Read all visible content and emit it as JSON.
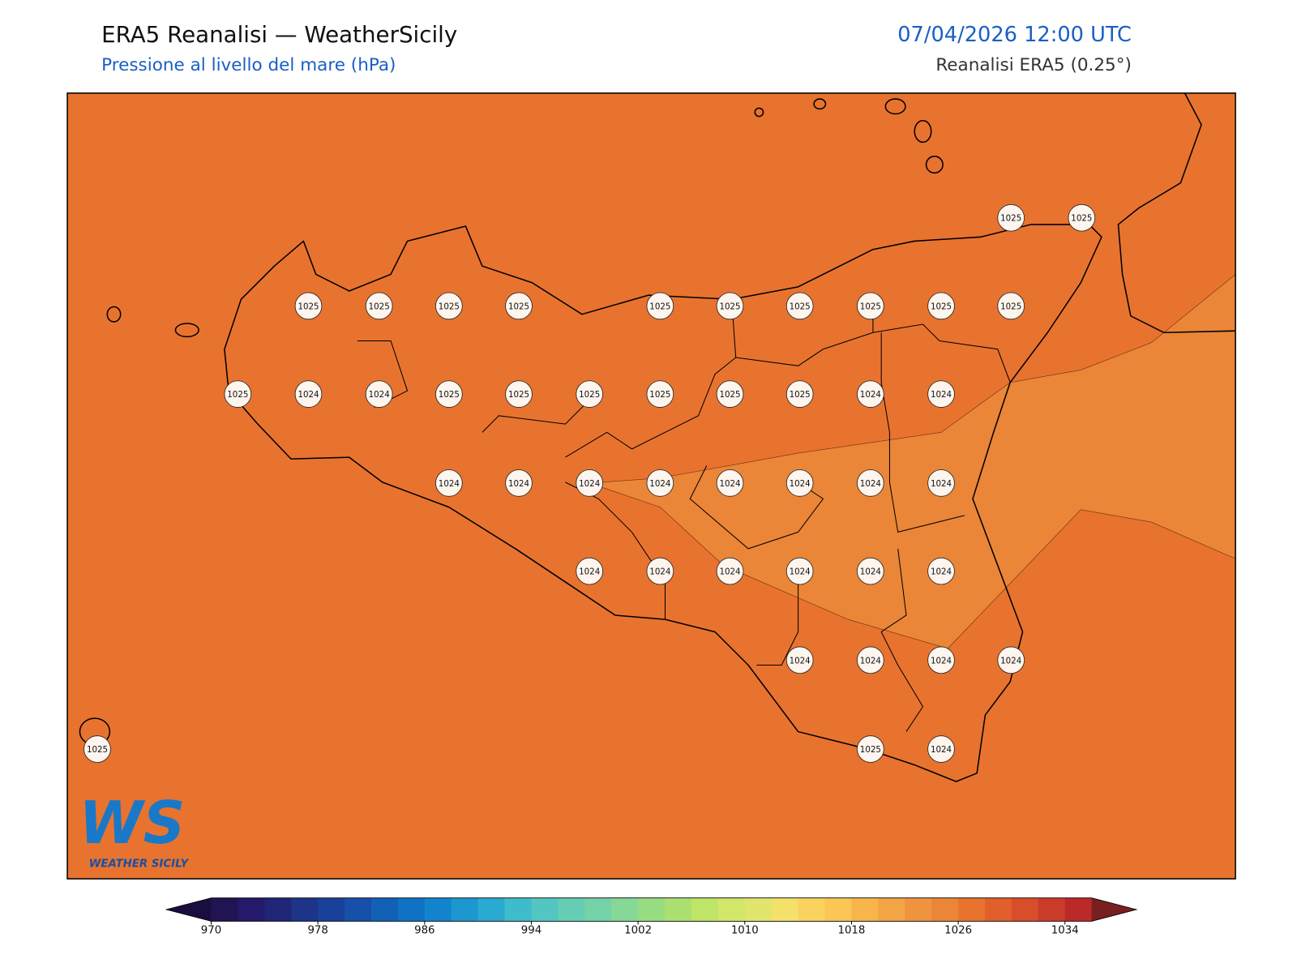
{
  "header": {
    "title": "ERA5 Reanalisi — WeatherSicily",
    "subtitle": "Pressione al livello del mare (hPa)",
    "datetime": "07/04/2026 12:00 UTC",
    "source": "Reanalisi ERA5 (0.25°)"
  },
  "map": {
    "pressure_labels": [
      1025,
      1025,
      1025,
      1025,
      1025,
      1025,
      1025,
      1025,
      1025,
      1025,
      1025,
      1025,
      1025,
      1024,
      1024,
      1025,
      1025,
      1025,
      1025,
      1025,
      1025,
      1024,
      1024,
      1024,
      1024,
      1024,
      1024,
      1024,
      1024,
      1024,
      1024,
      1024,
      1024,
      1024,
      1024,
      1024,
      1024,
      1024,
      1024,
      1024,
      1024,
      1025,
      1025,
      1024
    ]
  },
  "logo": {
    "text": "WS",
    "name": "WEATHER SICILY"
  },
  "colorbar": {
    "range": [
      970,
      1036
    ],
    "ticks": [
      970,
      978,
      986,
      994,
      1002,
      1010,
      1018,
      1026,
      1034
    ],
    "colors": [
      "#221452",
      "#24196a",
      "#1f2676",
      "#1d3488",
      "#1a419a",
      "#1650a8",
      "#1361b6",
      "#0f72c4",
      "#1284cd",
      "#1d97cf",
      "#2aaad1",
      "#3ebccc",
      "#53c6c2",
      "#66cdb5",
      "#74d2a8",
      "#85d896",
      "#98dc82",
      "#abe070",
      "#bee468",
      "#d2e66a",
      "#e1e56d",
      "#f3e16a",
      "#fad35f",
      "#fbc655",
      "#f7b54c",
      "#f3a444",
      "#ef933e",
      "#eb8638",
      "#e8732f",
      "#e15f2a",
      "#d84d2a",
      "#cb3b2a",
      "#bb2a28"
    ],
    "extend_colors": [
      "#1a0d40",
      "#7a1f1f"
    ]
  }
}
